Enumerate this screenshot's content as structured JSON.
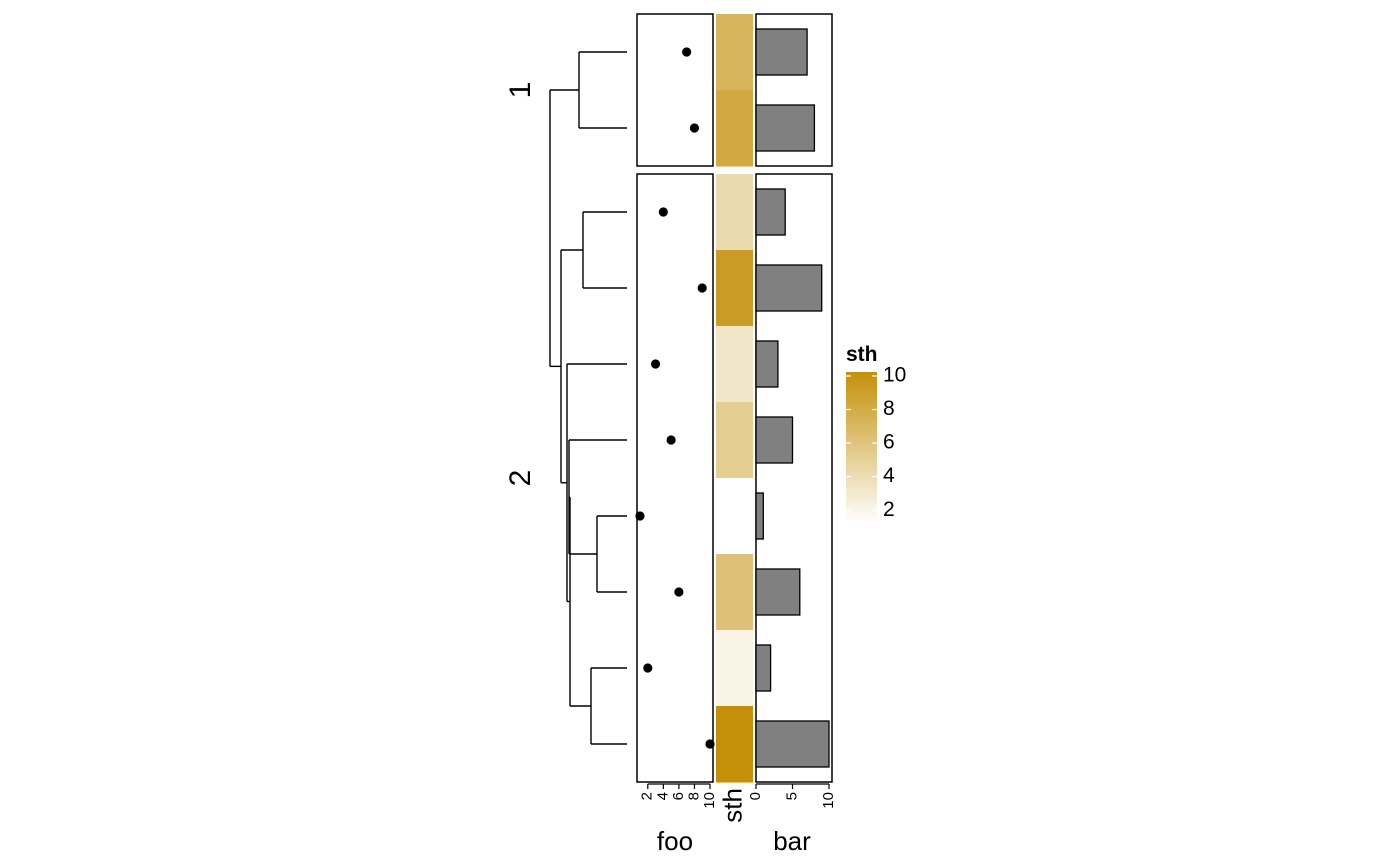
{
  "chart_data": {
    "type": "heatmap",
    "title": "",
    "row_groups": [
      {
        "label": "1",
        "rows": [
          7,
          8
        ]
      },
      {
        "label": "2",
        "rows": [
          4,
          9,
          3,
          5,
          1,
          6,
          2,
          10
        ]
      }
    ],
    "order": [
      7,
      8,
      4,
      9,
      3,
      5,
      1,
      6,
      2,
      10
    ],
    "foo": {
      "name": "foo",
      "type": "scatter",
      "xlim": [
        1,
        10
      ],
      "ticks": [
        "2",
        "4",
        "6",
        "8",
        "10"
      ],
      "values": [
        7,
        8,
        4,
        9,
        3,
        5,
        1,
        6,
        2,
        10
      ]
    },
    "sth": {
      "name": "sth",
      "type": "heatmap",
      "values": [
        7,
        8,
        4,
        9,
        3,
        5,
        1,
        6,
        2,
        10
      ]
    },
    "bar": {
      "name": "bar",
      "type": "bar",
      "xlim": [
        0,
        10
      ],
      "ticks": [
        "0",
        "5",
        "10"
      ],
      "values": [
        7,
        8,
        4,
        9,
        3,
        5,
        1,
        6,
        2,
        10
      ]
    },
    "legend": {
      "title": "sth",
      "placement": "right",
      "range": [
        1,
        10
      ],
      "ticks": [
        "2",
        "4",
        "6",
        "8",
        "10"
      ],
      "colors": [
        "#FFFFFF",
        "#C4900A"
      ]
    }
  }
}
